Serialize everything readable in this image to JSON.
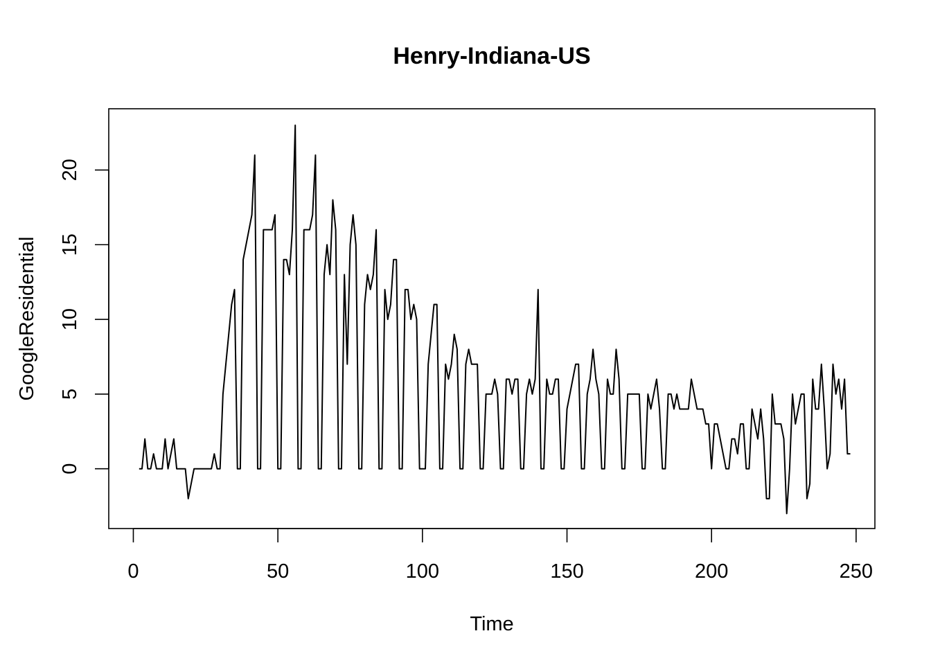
{
  "chart_data": {
    "type": "line",
    "title": "Henry-Indiana-US",
    "xlabel": "Time",
    "ylabel": "GoogleResidential",
    "xlim": [
      -8.5,
      256.5
    ],
    "ylim": [
      -4,
      24.1
    ],
    "xticks": [
      0,
      50,
      100,
      150,
      200,
      250
    ],
    "yticks": [
      0,
      5,
      10,
      15,
      20
    ],
    "grid": false,
    "legend": "none",
    "line_color": "#000000",
    "series": [
      {
        "x_start": 2,
        "values": [
          0,
          0,
          2,
          0,
          0,
          1,
          0,
          0,
          0,
          2,
          0,
          1,
          2,
          0,
          0,
          0,
          0,
          -2,
          -1,
          0,
          0,
          0,
          0,
          0,
          0,
          0,
          1,
          0,
          0,
          5,
          7,
          9,
          11,
          12,
          0,
          0,
          14,
          15,
          16,
          17,
          21,
          0,
          0,
          16,
          16,
          16,
          16,
          17,
          0,
          0,
          14,
          14,
          13,
          16,
          23,
          0,
          0,
          16,
          16,
          16,
          17,
          21,
          0,
          0,
          13,
          15,
          13,
          18,
          16,
          0,
          0,
          13,
          7,
          15,
          17,
          15,
          0,
          0,
          11,
          13,
          12,
          13,
          16,
          0,
          0,
          12,
          10,
          11,
          14,
          14,
          0,
          0,
          12,
          12,
          10,
          11,
          10,
          0,
          0,
          0,
          7,
          9,
          11,
          11,
          0,
          0,
          7,
          6,
          7,
          9,
          8,
          0,
          0,
          7,
          8,
          7,
          7,
          7,
          0,
          0,
          5,
          5,
          5,
          6,
          5,
          0,
          0,
          6,
          6,
          5,
          6,
          6,
          0,
          0,
          5,
          6,
          5,
          6,
          12,
          0,
          0,
          6,
          5,
          5,
          6,
          6,
          0,
          0,
          4,
          5,
          6,
          7,
          7,
          0,
          0,
          5,
          6,
          8,
          6,
          5,
          0,
          0,
          6,
          5,
          5,
          8,
          6,
          0,
          0,
          5,
          5,
          5,
          5,
          5,
          0,
          0,
          5,
          4,
          5,
          6,
          4,
          0,
          0,
          5,
          5,
          4,
          5,
          4,
          4,
          4,
          4,
          6,
          5,
          4,
          4,
          4,
          3,
          3,
          0,
          3,
          3,
          2,
          1,
          0,
          0,
          2,
          2,
          1,
          3,
          3,
          0,
          0,
          4,
          3,
          2,
          4,
          2,
          -2,
          -2,
          5,
          3,
          3,
          3,
          2,
          -3,
          0,
          5,
          3,
          4,
          5,
          5,
          -2,
          -1,
          6,
          4,
          4,
          7,
          4,
          0,
          1,
          7,
          5,
          6,
          4,
          6,
          1,
          1
        ]
      }
    ]
  }
}
